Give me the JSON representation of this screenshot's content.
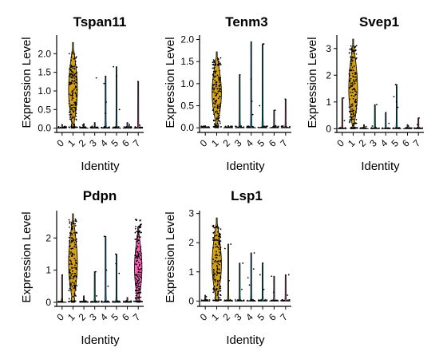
{
  "chart_data": [
    {
      "type": "violin",
      "title": "Tspan11",
      "xlabel": "Identity",
      "ylabel": "Expression Level",
      "categories": [
        "0",
        "1",
        "2",
        "3",
        "4",
        "5",
        "6",
        "7"
      ],
      "ylim": [
        -0.05,
        2.5
      ],
      "yticks": [
        0.0,
        0.5,
        1.0,
        1.5,
        2.0
      ],
      "ytick_labels": [
        "0.0",
        "0.5",
        "1.0",
        "1.5",
        "2.0"
      ],
      "fill_colors": [
        "#f8766d",
        "#d4a017",
        "#a3a500",
        "#00bf7d",
        "#00b0f6",
        "#00bfc4",
        "#a58aff",
        "#ff62bc"
      ],
      "max_values": [
        0.1,
        2.3,
        0.12,
        0.15,
        1.4,
        1.65,
        0.15,
        1.25
      ],
      "peak_width": [
        0.0,
        1.0,
        0.0,
        0.0,
        0.0,
        0.0,
        0.0,
        0.0
      ],
      "dense_range": [
        0.05,
        2.05
      ],
      "sparse_points": [
        [
          0,
          0.02
        ],
        [
          0,
          0.05
        ],
        [
          2,
          0.03
        ],
        [
          2,
          0.08
        ],
        [
          3,
          1.35
        ],
        [
          3,
          0.05
        ],
        [
          4,
          0.7
        ],
        [
          4,
          1.2
        ],
        [
          4,
          0.4
        ],
        [
          5,
          1.65
        ],
        [
          5,
          0.5
        ],
        [
          5,
          1.4
        ],
        [
          6,
          0.06
        ],
        [
          6,
          0.1
        ],
        [
          7,
          1.25
        ],
        [
          7,
          0.08
        ]
      ]
    },
    {
      "type": "violin",
      "title": "Tenm3",
      "xlabel": "Identity",
      "ylabel": "Expression Level",
      "categories": [
        "0",
        "1",
        "2",
        "3",
        "4",
        "5",
        "6",
        "7"
      ],
      "ylim": [
        -0.05,
        2.1
      ],
      "yticks": [
        0.0,
        0.5,
        1.0,
        1.5,
        2.0
      ],
      "ytick_labels": [
        "0.0",
        "0.5",
        "1.0",
        "1.5",
        "2.0"
      ],
      "fill_colors": [
        "#f8766d",
        "#d4a017",
        "#a3a500",
        "#00bf7d",
        "#00b0f6",
        "#00bfc4",
        "#a58aff",
        "#ff62bc"
      ],
      "max_values": [
        0.05,
        1.72,
        0.05,
        1.2,
        1.95,
        1.9,
        0.4,
        0.65
      ],
      "peak_width": [
        0.0,
        1.0,
        0.0,
        0.0,
        0.0,
        0.0,
        0.0,
        0.0
      ],
      "dense_range": [
        0.05,
        1.6
      ],
      "sparse_points": [
        [
          0,
          0.02
        ],
        [
          2,
          0.02
        ],
        [
          3,
          1.2
        ],
        [
          3,
          0.03
        ],
        [
          4,
          0.6
        ],
        [
          4,
          1.1
        ],
        [
          4,
          0.3
        ],
        [
          5,
          1.9
        ],
        [
          5,
          0.5
        ],
        [
          6,
          0.4
        ],
        [
          6,
          0.05
        ],
        [
          7,
          0.65
        ]
      ]
    },
    {
      "type": "violin",
      "title": "Svep1",
      "xlabel": "Identity",
      "ylabel": "Expression Level",
      "categories": [
        "0",
        "1",
        "2",
        "3",
        "4",
        "5",
        "6",
        "7"
      ],
      "ylim": [
        -0.05,
        3.5
      ],
      "yticks": [
        0,
        1,
        2,
        3
      ],
      "ytick_labels": [
        "0",
        "1",
        "2",
        "3"
      ],
      "fill_colors": [
        "#f8766d",
        "#d4a017",
        "#a3a500",
        "#00bf7d",
        "#00b0f6",
        "#00bfc4",
        "#a58aff",
        "#ff62bc"
      ],
      "max_values": [
        1.15,
        3.35,
        0.15,
        0.9,
        0.6,
        1.65,
        0.15,
        0.4
      ],
      "peak_width": [
        0.0,
        1.0,
        0.0,
        0.0,
        0.0,
        0.0,
        0.0,
        0.0
      ],
      "dense_range": [
        0.1,
        3.2
      ],
      "sparse_points": [
        [
          0,
          1.15
        ],
        [
          0,
          0.3
        ],
        [
          2,
          0.08
        ],
        [
          3,
          0.9
        ],
        [
          3,
          0.1
        ],
        [
          4,
          0.6
        ],
        [
          4,
          0.2
        ],
        [
          5,
          1.65
        ],
        [
          5,
          1.0
        ],
        [
          5,
          1.2
        ],
        [
          5,
          0.8
        ],
        [
          6,
          0.1
        ],
        [
          7,
          0.4
        ],
        [
          7,
          0.15
        ]
      ]
    },
    {
      "type": "violin",
      "title": "Pdpn",
      "xlabel": "Identity",
      "ylabel": "Expression Level",
      "categories": [
        "0",
        "1",
        "2",
        "3",
        "4",
        "5",
        "6",
        "7"
      ],
      "ylim": [
        -0.05,
        2.85
      ],
      "yticks": [
        0,
        1,
        2
      ],
      "ytick_labels": [
        "0",
        "1",
        "2"
      ],
      "fill_colors": [
        "#f8766d",
        "#d4a017",
        "#a3a500",
        "#00bf7d",
        "#00b0f6",
        "#00bfc4",
        "#a58aff",
        "#ff62bc"
      ],
      "max_values": [
        0.85,
        2.75,
        0.2,
        0.95,
        2.05,
        1.5,
        0.15,
        2.35
      ],
      "peak_width": [
        0.0,
        1.0,
        0.0,
        0.0,
        0.0,
        0.0,
        0.0,
        0.85
      ],
      "dense_range": [
        0.1,
        2.6
      ],
      "sparse_points": [
        [
          0,
          0.85
        ],
        [
          0,
          0.1
        ],
        [
          2,
          0.08
        ],
        [
          3,
          0.95
        ],
        [
          3,
          0.2
        ],
        [
          4,
          2.05
        ],
        [
          4,
          1.0
        ],
        [
          4,
          0.5
        ],
        [
          5,
          1.5
        ],
        [
          5,
          1.2
        ],
        [
          5,
          0.9
        ],
        [
          6,
          0.05
        ],
        [
          7,
          2.2
        ],
        [
          7,
          1.5
        ],
        [
          7,
          0.6
        ]
      ]
    },
    {
      "type": "violin",
      "title": "Lsp1",
      "xlabel": "Identity",
      "ylabel": "Expression Level",
      "categories": [
        "0",
        "1",
        "2",
        "3",
        "4",
        "5",
        "6",
        "7"
      ],
      "ylim": [
        -0.1,
        3.1
      ],
      "yticks": [
        0,
        1,
        2,
        3
      ],
      "ytick_labels": [
        "0",
        "1",
        "2",
        "3"
      ],
      "fill_colors": [
        "#f8766d",
        "#d4a017",
        "#a3a500",
        "#00bf7d",
        "#00b0f6",
        "#00bfc4",
        "#a58aff",
        "#ff62bc"
      ],
      "max_values": [
        0.2,
        2.85,
        1.95,
        1.3,
        1.65,
        1.3,
        0.85,
        0.9
      ],
      "peak_width": [
        0.0,
        1.0,
        0.0,
        0.0,
        0.0,
        0.0,
        0.0,
        0.0
      ],
      "dense_range": [
        0.1,
        2.6
      ],
      "sparse_points": [
        [
          0,
          0.15
        ],
        [
          0,
          0.05
        ],
        [
          2,
          1.95
        ],
        [
          2,
          1.8
        ],
        [
          2,
          0.7
        ],
        [
          3,
          1.3
        ],
        [
          3,
          0.4
        ],
        [
          4,
          1.65
        ],
        [
          4,
          1.1
        ],
        [
          4,
          0.8
        ],
        [
          4,
          0.55
        ],
        [
          5,
          1.3
        ],
        [
          5,
          0.9
        ],
        [
          5,
          0.4
        ],
        [
          6,
          0.85
        ],
        [
          6,
          0.3
        ],
        [
          7,
          0.9
        ],
        [
          7,
          0.2
        ]
      ]
    }
  ]
}
